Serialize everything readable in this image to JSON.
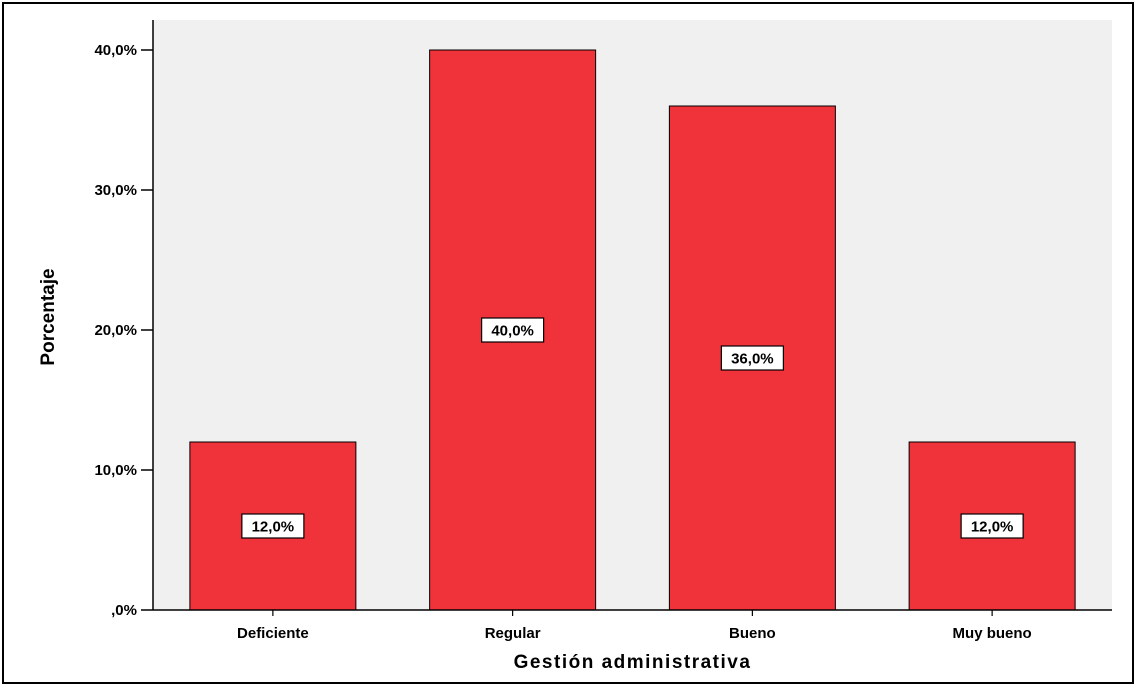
{
  "chart_data": {
    "type": "bar",
    "categories": [
      "Deficiente",
      "Regular",
      "Bueno",
      "Muy bueno"
    ],
    "values": [
      12.0,
      40.0,
      36.0,
      12.0
    ],
    "data_labels": [
      "12,0%",
      "40,0%",
      "36,0%",
      "12,0%"
    ],
    "ylim": [
      0,
      40
    ],
    "yticks": [
      0,
      10,
      20,
      30,
      40
    ],
    "ytick_labels": [
      ",0%",
      "10,0%",
      "20,0%",
      "30,0%",
      "40,0%"
    ],
    "xlabel": "Gestión administrativa",
    "ylabel": "Porcentaje",
    "title": "",
    "grid": false,
    "legend": "none",
    "colors": {
      "bar_fill": "#F0323A",
      "plot_background": "#F0F0F0",
      "bar_stroke": "#000000"
    }
  }
}
